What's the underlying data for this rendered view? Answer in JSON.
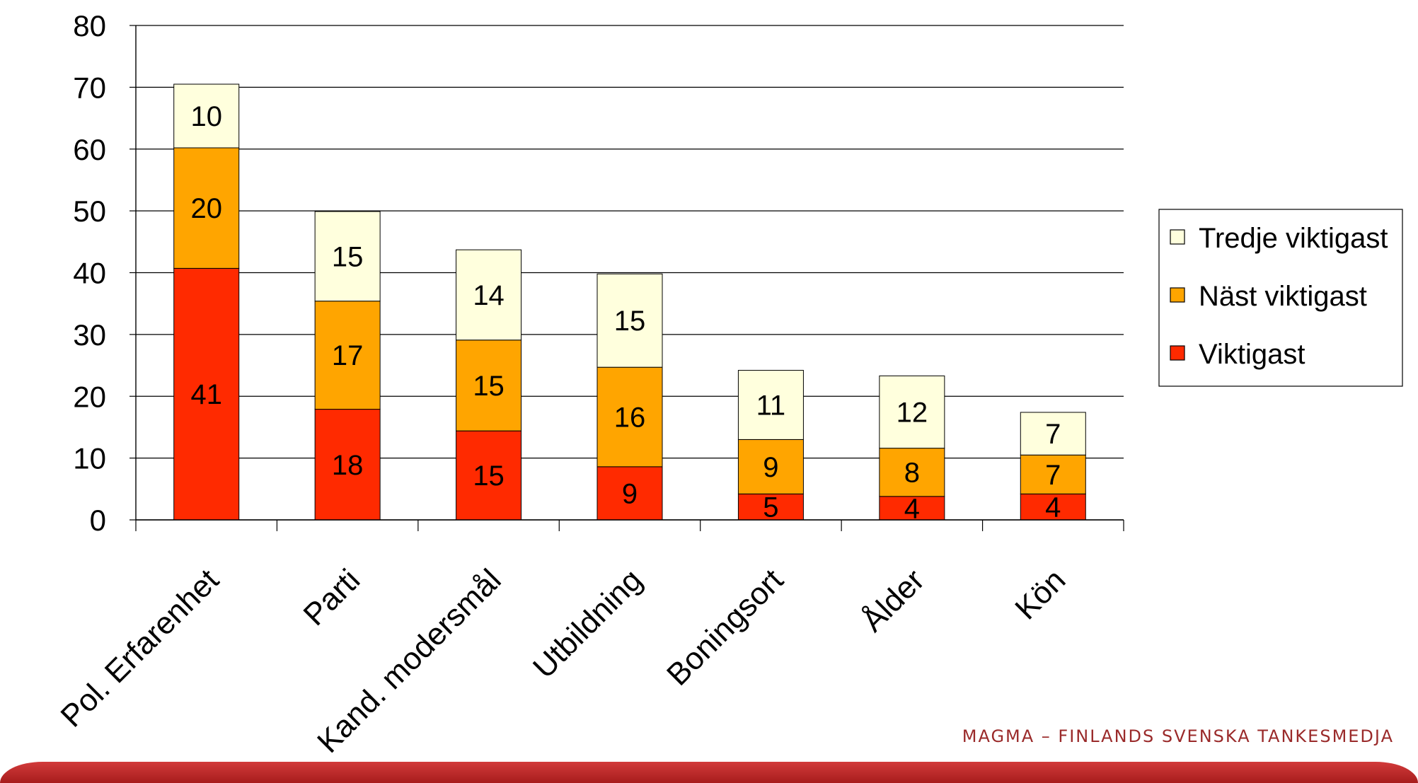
{
  "chart_data": {
    "type": "bar",
    "stacked": true,
    "categories": [
      "Pol. Erfarenhet",
      "Parti",
      "Kand. modersmål",
      "Utbildning",
      "Boningsort",
      "Ålder",
      "Kön"
    ],
    "series": [
      {
        "name": "Viktigast",
        "color": "#ff2a00",
        "values": [
          41,
          18,
          15,
          9,
          5,
          4,
          4
        ]
      },
      {
        "name": "Näst viktigast",
        "color": "#ffa500",
        "values": [
          20,
          17,
          15,
          16,
          9,
          8,
          7
        ]
      },
      {
        "name": "Tredje viktigast",
        "color": "#ffffdd",
        "values": [
          10,
          15,
          14,
          15,
          11,
          12,
          7
        ]
      }
    ],
    "segments_plotted": [
      [
        40.7,
        19.5,
        10.3
      ],
      [
        17.9,
        17.5,
        14.5
      ],
      [
        14.4,
        14.7,
        14.6
      ],
      [
        8.6,
        16.1,
        15.1
      ],
      [
        4.2,
        8.8,
        11.2
      ],
      [
        3.8,
        7.8,
        11.7
      ],
      [
        4.2,
        6.3,
        6.9
      ]
    ],
    "ylim": [
      0,
      80
    ],
    "yticks": [
      0,
      10,
      20,
      30,
      40,
      50,
      60,
      70,
      80
    ],
    "grid": true,
    "legend_position": "right",
    "legend_order": [
      "Tredje viktigast",
      "Näst viktigast",
      "Viktigast"
    ]
  },
  "branding": {
    "text": "MAGMA – FINLANDS SVENSKA TANKESMEDJA"
  }
}
